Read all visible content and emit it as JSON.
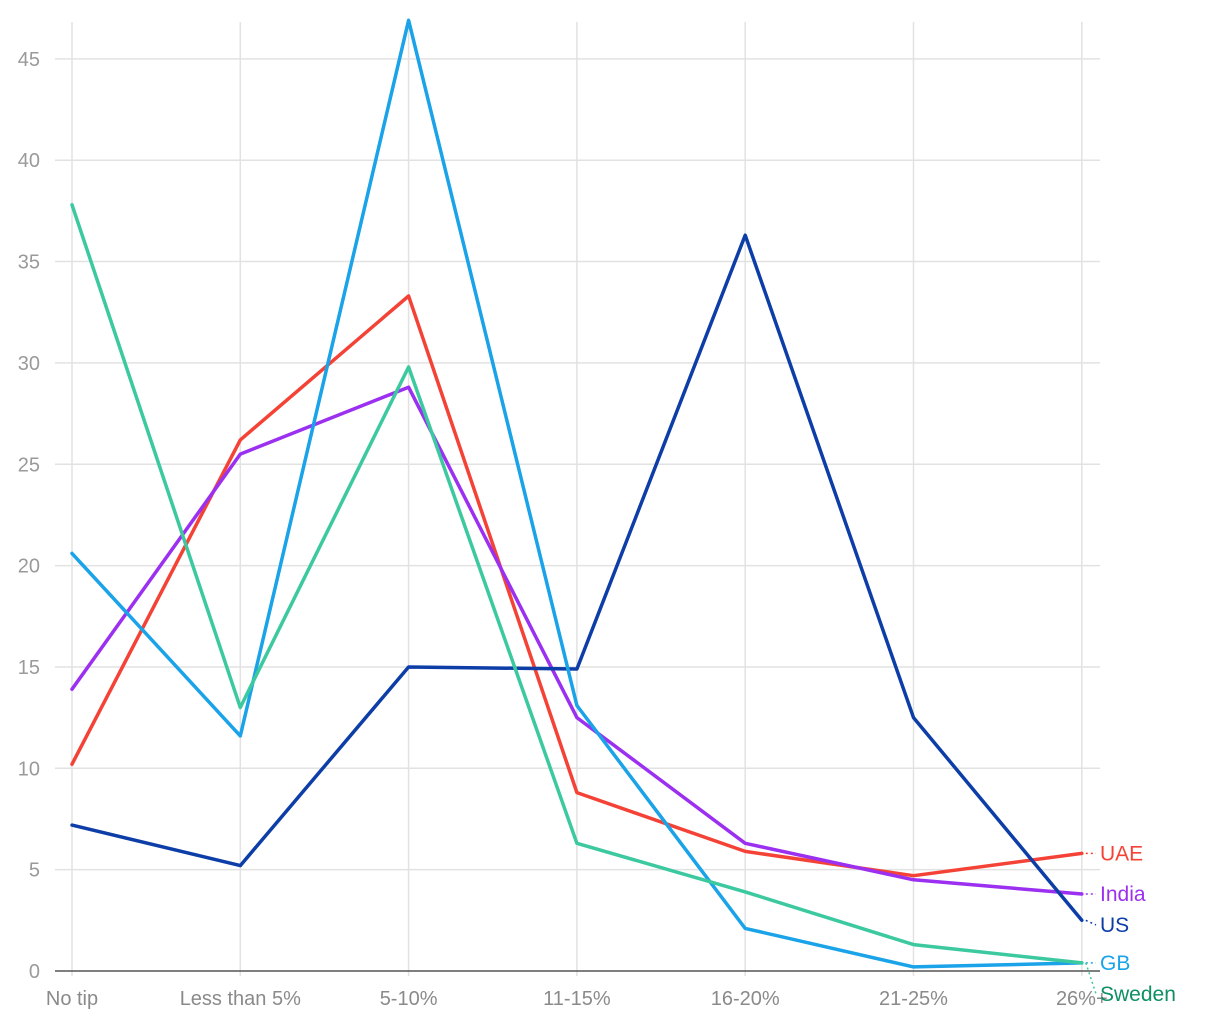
{
  "chart_data": {
    "type": "line",
    "title": "",
    "xlabel": "",
    "ylabel": "",
    "categories": [
      "No tip",
      "Less than 5%",
      "5-10%",
      "11-15%",
      "16-20%",
      "21-25%",
      "26%+"
    ],
    "ylim": [
      0,
      47
    ],
    "yticks": [
      0,
      5,
      10,
      15,
      20,
      25,
      30,
      35,
      40,
      45
    ],
    "grid": true,
    "legend": "right-end labels",
    "series": [
      {
        "name": "UAE",
        "color": "#f44336",
        "values": [
          10.2,
          26.2,
          33.3,
          8.8,
          5.9,
          4.7,
          5.8
        ]
      },
      {
        "name": "India",
        "color": "#9b30f0",
        "values": [
          13.9,
          25.5,
          28.8,
          12.5,
          6.3,
          4.5,
          3.8
        ]
      },
      {
        "name": "US",
        "color": "#0d3ea8",
        "values": [
          7.2,
          5.2,
          15.0,
          14.9,
          36.3,
          12.5,
          2.5
        ]
      },
      {
        "name": "GB",
        "color": "#1aa3e8",
        "values": [
          20.6,
          11.6,
          46.9,
          13.1,
          2.1,
          0.2,
          0.4
        ]
      },
      {
        "name": "Sweden",
        "color": "#3cc9a0",
        "label_color": "#0e8f64",
        "values": [
          37.8,
          13.0,
          29.8,
          6.3,
          3.9,
          1.3,
          0.4
        ]
      }
    ]
  }
}
